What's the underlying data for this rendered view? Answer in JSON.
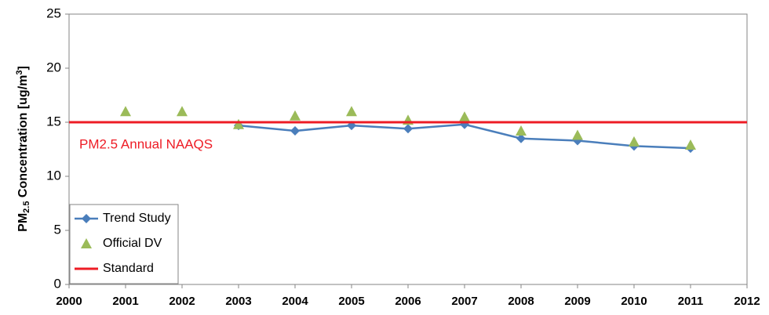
{
  "chart_data": {
    "type": "line",
    "ylabel": [
      "PM",
      "2.5",
      " Concentration [ug/m",
      "3",
      "]"
    ],
    "annotation": "PM2.5 Annual NAAQS",
    "annotation_color": "#ee1c25",
    "xlim": [
      2000,
      2012
    ],
    "xticks": [
      2000,
      2001,
      2002,
      2003,
      2004,
      2005,
      2006,
      2007,
      2008,
      2009,
      2010,
      2011,
      2012
    ],
    "ylim": [
      0,
      25
    ],
    "yticks": [
      0,
      5,
      10,
      15,
      20,
      25
    ],
    "grid": false,
    "legend": "lower left",
    "series": [
      {
        "name": "Trend Study",
        "color": "#4a7ebb",
        "marker": "diamond",
        "line": true,
        "x": [
          2003,
          2004,
          2005,
          2006,
          2007,
          2008,
          2009,
          2010,
          2011
        ],
        "values": [
          14.7,
          14.2,
          14.7,
          14.4,
          14.8,
          13.5,
          13.3,
          12.8,
          12.6
        ]
      },
      {
        "name": "Official DV",
        "color": "#9bbb59",
        "marker": "triangle",
        "line": false,
        "x": [
          2001,
          2002,
          2003,
          2004,
          2005,
          2006,
          2007,
          2008,
          2009,
          2010,
          2011
        ],
        "values": [
          16.0,
          16.0,
          14.8,
          15.6,
          16.0,
          15.2,
          15.5,
          14.2,
          13.8,
          13.2,
          12.9
        ]
      },
      {
        "name": "Standard",
        "color": "#ee1c25",
        "marker": "none",
        "line": true,
        "x": [
          2000,
          2012
        ],
        "values": [
          15,
          15
        ]
      }
    ]
  }
}
